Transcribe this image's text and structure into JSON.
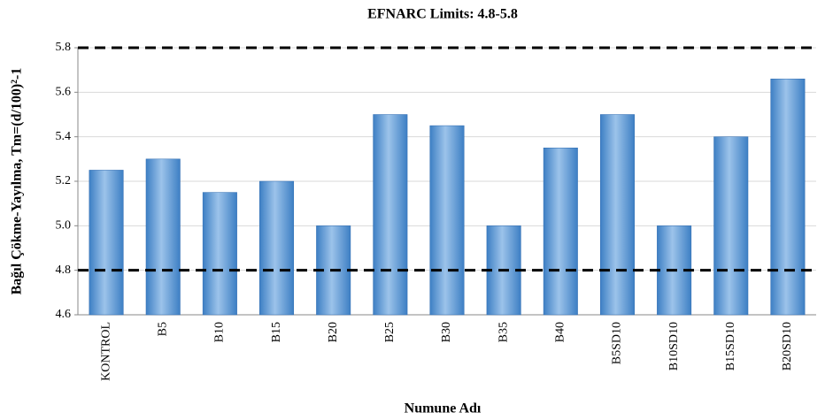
{
  "chart_data": {
    "type": "bar",
    "title": "EFNARC Limits:  4.8-5.8",
    "x_label": "Numune Adı",
    "y_label": "Bağıl Çökme-Yayılma, Tm=(d/100)²-1",
    "categories": [
      "KONTROL",
      "B5",
      "B10",
      "B15",
      "B20",
      "B25",
      "B30",
      "B35",
      "B40",
      "B5SD10",
      "B10SD10",
      "B15SD10",
      "B20SD10"
    ],
    "values": [
      5.25,
      5.3,
      5.15,
      5.2,
      5.0,
      5.5,
      5.45,
      5.0,
      5.35,
      5.5,
      5.0,
      5.4,
      5.66
    ],
    "color": "#5b9bd5",
    "reference_lines": [
      4.8,
      5.8
    ],
    "ylim": [
      4.6,
      5.8
    ],
    "yticks": [
      4.6,
      4.8,
      {
        "value": 5,
        "label": "5.0"
      },
      5.2,
      5.4,
      5.6,
      5.8
    ],
    "grid": true
  }
}
